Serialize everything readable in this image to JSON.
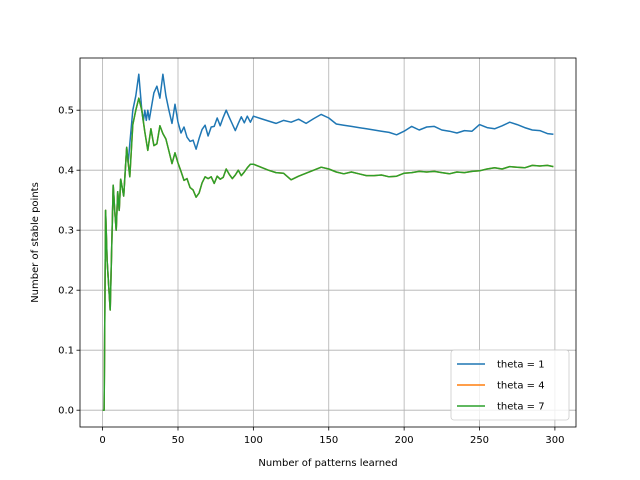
{
  "chart_data": {
    "type": "line",
    "title": "",
    "xlabel": "Number of patterns learned",
    "ylabel": "Number of stable points",
    "xlim": [
      -15,
      314
    ],
    "ylim": [
      -0.028,
      0.587
    ],
    "x_ticks": [
      0,
      50,
      100,
      150,
      200,
      250,
      300
    ],
    "x_tick_labels": [
      "0",
      "50",
      "100",
      "150",
      "200",
      "250",
      "300"
    ],
    "y_ticks": [
      0.0,
      0.1,
      0.2,
      0.3,
      0.4,
      0.5
    ],
    "y_tick_labels": [
      "0.0",
      "0.1",
      "0.2",
      "0.3",
      "0.4",
      "0.5"
    ],
    "grid": true,
    "legend_position": "lower-right",
    "series": [
      {
        "name": "theta = 1",
        "color": "#1f77b4",
        "x": [
          0,
          1,
          2,
          3,
          5,
          7,
          8,
          9,
          10,
          11,
          12,
          14,
          16,
          17,
          18,
          20,
          22,
          24,
          26,
          27,
          28,
          29,
          30,
          31,
          32,
          34,
          36,
          38,
          40,
          42,
          44,
          46,
          48,
          50,
          52,
          54,
          56,
          58,
          60,
          62,
          64,
          66,
          68,
          70,
          72,
          74,
          76,
          78,
          80,
          82,
          84,
          86,
          88,
          90,
          92,
          94,
          96,
          98,
          100,
          105,
          110,
          115,
          120,
          125,
          130,
          135,
          140,
          145,
          150,
          155,
          160,
          165,
          170,
          175,
          180,
          185,
          190,
          195,
          200,
          205,
          210,
          215,
          220,
          225,
          230,
          235,
          240,
          245,
          250,
          255,
          260,
          265,
          270,
          275,
          280,
          285,
          290,
          295,
          299
        ],
        "y": [
          0.0,
          0.0,
          0.333,
          0.25,
          0.167,
          0.375,
          0.333,
          0.3,
          0.364,
          0.333,
          0.385,
          0.357,
          0.438,
          0.412,
          0.444,
          0.5,
          0.524,
          0.56,
          0.5,
          0.481,
          0.5,
          0.483,
          0.5,
          0.484,
          0.5,
          0.529,
          0.54,
          0.52,
          0.56,
          0.524,
          0.5,
          0.478,
          0.51,
          0.48,
          0.462,
          0.472,
          0.455,
          0.448,
          0.45,
          0.435,
          0.453,
          0.468,
          0.475,
          0.457,
          0.472,
          0.473,
          0.487,
          0.474,
          0.488,
          0.5,
          0.488,
          0.477,
          0.466,
          0.478,
          0.489,
          0.479,
          0.49,
          0.48,
          0.49,
          0.486,
          0.482,
          0.478,
          0.483,
          0.48,
          0.485,
          0.478,
          0.486,
          0.493,
          0.487,
          0.477,
          0.475,
          0.473,
          0.471,
          0.469,
          0.467,
          0.465,
          0.463,
          0.459,
          0.465,
          0.473,
          0.467,
          0.472,
          0.473,
          0.467,
          0.465,
          0.462,
          0.466,
          0.465,
          0.476,
          0.471,
          0.469,
          0.474,
          0.48,
          0.476,
          0.471,
          0.467,
          0.466,
          0.461,
          0.46
        ]
      },
      {
        "name": "theta = 4",
        "color": "#ff7f0e",
        "x": [
          0,
          1,
          2,
          3,
          5,
          7,
          8,
          9,
          10,
          11,
          12,
          14,
          16,
          17,
          18,
          20,
          22,
          24,
          26,
          28,
          30,
          32,
          34,
          36,
          38,
          40,
          42,
          44,
          46,
          48,
          50,
          52,
          54,
          56,
          58,
          60,
          62,
          64,
          66,
          68,
          70,
          72,
          74,
          76,
          78,
          80,
          82,
          84,
          86,
          88,
          90,
          92,
          94,
          96,
          98,
          100,
          105,
          110,
          115,
          120,
          125,
          130,
          135,
          140,
          145,
          150,
          155,
          160,
          165,
          170,
          175,
          180,
          185,
          190,
          195,
          200,
          205,
          210,
          215,
          220,
          225,
          230,
          235,
          240,
          245,
          250,
          255,
          260,
          265,
          270,
          275,
          280,
          285,
          290,
          295,
          299
        ],
        "y": [
          0.0,
          0.0,
          0.333,
          0.25,
          0.167,
          0.375,
          0.333,
          0.3,
          0.364,
          0.333,
          0.385,
          0.357,
          0.438,
          0.412,
          0.389,
          0.476,
          0.5,
          0.52,
          0.5,
          0.464,
          0.433,
          0.469,
          0.441,
          0.444,
          0.474,
          0.461,
          0.452,
          0.432,
          0.411,
          0.429,
          0.412,
          0.398,
          0.383,
          0.386,
          0.371,
          0.367,
          0.355,
          0.362,
          0.379,
          0.389,
          0.386,
          0.389,
          0.378,
          0.39,
          0.385,
          0.388,
          0.402,
          0.393,
          0.386,
          0.392,
          0.4,
          0.391,
          0.397,
          0.404,
          0.41,
          0.41,
          0.405,
          0.4,
          0.396,
          0.395,
          0.384,
          0.39,
          0.395,
          0.4,
          0.405,
          0.402,
          0.397,
          0.394,
          0.397,
          0.394,
          0.391,
          0.391,
          0.392,
          0.389,
          0.39,
          0.395,
          0.396,
          0.398,
          0.397,
          0.398,
          0.396,
          0.394,
          0.397,
          0.396,
          0.398,
          0.399,
          0.402,
          0.404,
          0.402,
          0.406,
          0.405,
          0.404,
          0.408,
          0.407,
          0.408,
          0.406
        ]
      },
      {
        "name": "theta = 7",
        "color": "#2ca02c",
        "x": [
          0,
          1,
          2,
          3,
          5,
          7,
          8,
          9,
          10,
          11,
          12,
          14,
          16,
          17,
          18,
          20,
          22,
          24,
          26,
          28,
          30,
          32,
          34,
          36,
          38,
          40,
          42,
          44,
          46,
          48,
          50,
          52,
          54,
          56,
          58,
          60,
          62,
          64,
          66,
          68,
          70,
          72,
          74,
          76,
          78,
          80,
          82,
          84,
          86,
          88,
          90,
          92,
          94,
          96,
          98,
          100,
          105,
          110,
          115,
          120,
          125,
          130,
          135,
          140,
          145,
          150,
          155,
          160,
          165,
          170,
          175,
          180,
          185,
          190,
          195,
          200,
          205,
          210,
          215,
          220,
          225,
          230,
          235,
          240,
          245,
          250,
          255,
          260,
          265,
          270,
          275,
          280,
          285,
          290,
          295,
          299
        ],
        "y": [
          0.0,
          0.0,
          0.333,
          0.25,
          0.167,
          0.375,
          0.333,
          0.3,
          0.364,
          0.333,
          0.385,
          0.357,
          0.438,
          0.412,
          0.389,
          0.476,
          0.5,
          0.52,
          0.5,
          0.464,
          0.433,
          0.469,
          0.441,
          0.444,
          0.474,
          0.461,
          0.452,
          0.432,
          0.411,
          0.429,
          0.412,
          0.398,
          0.383,
          0.386,
          0.371,
          0.367,
          0.355,
          0.362,
          0.379,
          0.389,
          0.386,
          0.389,
          0.378,
          0.39,
          0.385,
          0.388,
          0.402,
          0.393,
          0.386,
          0.392,
          0.4,
          0.391,
          0.397,
          0.404,
          0.41,
          0.41,
          0.405,
          0.4,
          0.396,
          0.395,
          0.384,
          0.39,
          0.395,
          0.4,
          0.405,
          0.402,
          0.397,
          0.394,
          0.397,
          0.394,
          0.391,
          0.391,
          0.392,
          0.389,
          0.39,
          0.395,
          0.396,
          0.398,
          0.397,
          0.398,
          0.396,
          0.394,
          0.397,
          0.396,
          0.398,
          0.399,
          0.402,
          0.404,
          0.402,
          0.406,
          0.405,
          0.404,
          0.408,
          0.407,
          0.408,
          0.406
        ]
      }
    ]
  }
}
